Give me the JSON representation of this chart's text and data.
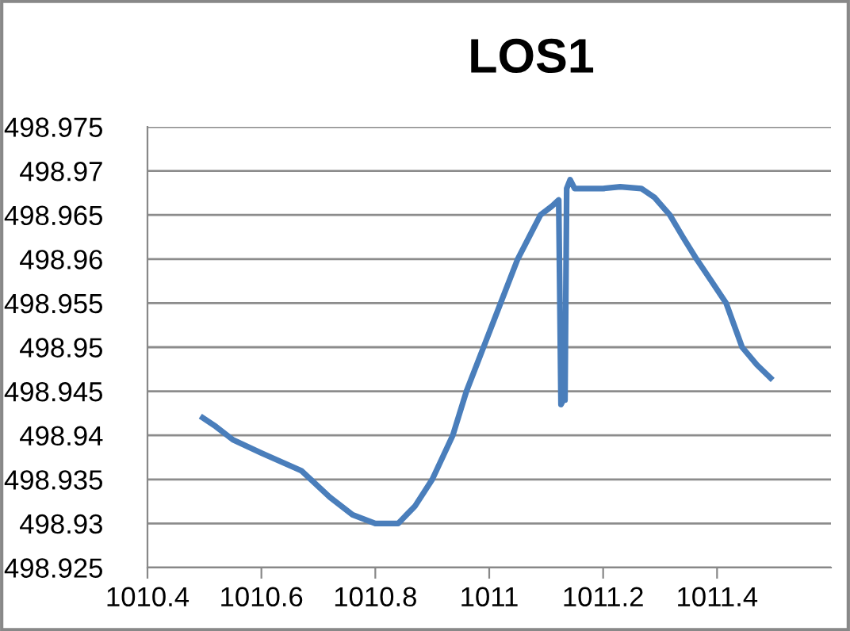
{
  "chart_data": {
    "type": "line",
    "title": "LOS1",
    "grid": "y",
    "legend": false,
    "marker": "none",
    "line_style": "solid",
    "xlim": [
      1010.4,
      1011.6
    ],
    "xticks": [
      1010.4,
      1010.6,
      1010.8,
      1011,
      1011.2,
      1011.4
    ],
    "ylim": [
      498.925,
      498.975
    ],
    "yticks": [
      498.925,
      498.93,
      498.935,
      498.94,
      498.945,
      498.95,
      498.955,
      498.96,
      498.965,
      498.97,
      498.975
    ],
    "series": [
      {
        "color": "#4a7ebb",
        "x": [
          1010.497,
          1010.52,
          1010.55,
          1010.6,
          1010.67,
          1010.72,
          1010.76,
          1010.8,
          1010.84,
          1010.87,
          1010.9,
          1010.936,
          1010.96,
          1010.99,
          1011.02,
          1011.05,
          1011.07,
          1011.09,
          1011.11,
          1011.122,
          1011.126,
          1011.13,
          1011.133,
          1011.136,
          1011.142,
          1011.15,
          1011.2,
          1011.23,
          1011.267,
          1011.29,
          1011.317,
          1011.34,
          1011.364,
          1011.39,
          1011.416,
          1011.444,
          1011.47,
          1011.494
        ],
        "values": [
          498.942,
          498.941,
          498.9395,
          498.938,
          498.936,
          498.933,
          498.931,
          498.93,
          498.93,
          498.932,
          498.935,
          498.94,
          498.945,
          498.95,
          498.955,
          498.96,
          498.9625,
          498.965,
          498.966,
          498.9667,
          498.9435,
          498.944,
          498.944,
          498.968,
          498.969,
          498.968,
          498.968,
          498.9682,
          498.968,
          498.967,
          498.965,
          498.9625,
          498.96,
          498.9575,
          498.955,
          498.95,
          498.948,
          498.9465
        ]
      }
    ]
  }
}
